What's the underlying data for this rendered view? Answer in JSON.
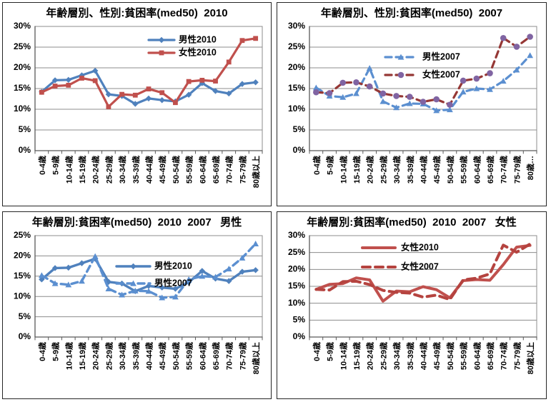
{
  "page": {
    "background": "#ffffff",
    "description_colors": {
      "male_2010_blue": "#4F81BD",
      "female_2010_red": "#C0504D",
      "male_2007_light_blue": "#5B8FD0",
      "female_2007_dark_red": "#953735",
      "female_2007_marker_purple": "#8064A2",
      "gridline_gray": "#8C8C8C",
      "axis_gray": "#595959"
    }
  },
  "chart_data": [
    {
      "type": "line",
      "title": "年齢層別、性別:貧困率(med50)  2010",
      "xlabel": "",
      "ylabel": "",
      "ylim": [
        0,
        30
      ],
      "ytick_step": 5,
      "ytick_labels": [
        "0%",
        "5%",
        "10%",
        "15%",
        "20%",
        "25%",
        "30%"
      ],
      "grid": true,
      "legend_position": "inside-upper-right",
      "categories": [
        "0-4歳",
        "5-9歳",
        "10-14歳",
        "15-19歳",
        "20-24歳",
        "25-29歳",
        "30-34歳",
        "35-39歳",
        "40-44歳",
        "45-49歳",
        "50-54歳",
        "55-59歳",
        "60-64歳",
        "65-69歳",
        "70-74歳",
        "75-79歳",
        "80歳以上"
      ],
      "series": [
        {
          "name": "男性2010",
          "color": "#4F81BD",
          "style": "solid",
          "marker": "diamond",
          "values": [
            14.2,
            17.0,
            17.1,
            18.2,
            19.3,
            13.6,
            13.2,
            11.3,
            12.6,
            12.2,
            11.9,
            13.5,
            16.3,
            14.4,
            13.8,
            16.1,
            16.5
          ]
        },
        {
          "name": "女性2010",
          "color": "#C0504D",
          "style": "solid",
          "marker": "square",
          "values": [
            14.1,
            15.6,
            15.8,
            17.5,
            16.9,
            10.6,
            13.6,
            13.4,
            14.9,
            14.0,
            11.6,
            16.7,
            17.0,
            16.8,
            21.4,
            26.6,
            27.1
          ]
        }
      ]
    },
    {
      "type": "line",
      "title": "年齢層別、性別:貧困率(med50)  2007",
      "xlabel": "",
      "ylabel": "",
      "ylim": [
        0,
        30
      ],
      "ytick_step": 5,
      "ytick_labels": [
        "0%",
        "5%",
        "10%",
        "15%",
        "20%",
        "25%",
        "30%"
      ],
      "grid": true,
      "legend_position": "inside-middle-center",
      "categories": [
        "0-4歳",
        "5-9歳",
        "10-14歳",
        "15-19歳",
        "20-24歳",
        "25-29歳",
        "30-34歳",
        "35-39歳",
        "40-44歳",
        "45-49歳",
        "50-54歳",
        "55-59歳",
        "60-64歳",
        "65-69歳",
        "70-74歳",
        "75-79歳",
        "80歳…"
      ],
      "series": [
        {
          "name": "男性2007",
          "color": "#5B8FD0",
          "style": "dashed",
          "marker": "triangle",
          "values": [
            15.2,
            13.2,
            12.9,
            13.8,
            19.9,
            11.9,
            10.4,
            11.4,
            11.3,
            9.7,
            9.9,
            14.2,
            15.0,
            14.8,
            16.8,
            19.5,
            23.0
          ]
        },
        {
          "name": "女性2007",
          "color": "#953735",
          "style": "dashed",
          "marker": "circle",
          "marker_color": "#8064A2",
          "values": [
            14.1,
            13.9,
            16.4,
            16.5,
            15.5,
            13.8,
            13.2,
            13.0,
            11.8,
            12.4,
            11.1,
            16.9,
            17.4,
            18.7,
            27.2,
            25.1,
            27.5
          ]
        }
      ]
    },
    {
      "type": "line",
      "title": "年齢層別:貧困率(med50)  2010  2007   男性",
      "xlabel": "",
      "ylabel": "",
      "ylim": [
        0,
        25
      ],
      "ytick_step": 5,
      "ytick_labels": [
        "0%",
        "5%",
        "10%",
        "15%",
        "20%",
        "25%"
      ],
      "grid": true,
      "legend_position": "inside-middle-center",
      "categories": [
        "0-4歳",
        "5-9歳",
        "10-14歳",
        "15-19歳",
        "20-24歳",
        "25-29歳",
        "30-34歳",
        "35-39歳",
        "40-44歳",
        "45-49歳",
        "50-54歳",
        "55-59歳",
        "60-64歳",
        "65-69歳",
        "70-74歳",
        "75-79歳",
        "80歳以上"
      ],
      "series": [
        {
          "name": "男性2010",
          "color": "#4F81BD",
          "style": "solid",
          "marker": "diamond",
          "values": [
            14.2,
            17.0,
            17.1,
            18.2,
            19.3,
            13.6,
            13.2,
            11.3,
            12.6,
            12.2,
            11.9,
            13.5,
            16.3,
            14.4,
            13.8,
            16.1,
            16.5
          ]
        },
        {
          "name": "男性2007",
          "color": "#5B8FD0",
          "style": "dashed",
          "marker": "triangle",
          "values": [
            15.2,
            13.2,
            12.9,
            13.8,
            19.9,
            11.9,
            10.4,
            11.4,
            11.3,
            9.7,
            9.9,
            14.2,
            15.0,
            14.8,
            16.8,
            19.5,
            23.0
          ]
        }
      ]
    },
    {
      "type": "line",
      "title": "年齢層別:貧困率(med50)  2010  2007   女性",
      "xlabel": "",
      "ylabel": "",
      "ylim": [
        0,
        30
      ],
      "ytick_step": 5,
      "ytick_labels": [
        "0%",
        "5%",
        "10%",
        "15%",
        "20%",
        "25%",
        "30%"
      ],
      "grid": true,
      "legend_position": "inside-upper-left",
      "categories": [
        "0-4歳",
        "5-9歳",
        "10-14歳",
        "15-19歳",
        "20-24歳",
        "25-29歳",
        "30-34歳",
        "35-39歳",
        "40-44歳",
        "45-49歳",
        "50-54歳",
        "55-59歳",
        "60-64歳",
        "65-69歳",
        "70-74歳",
        "75-79歳",
        "80歳以上"
      ],
      "series": [
        {
          "name": "女性2010",
          "color": "#C0504D",
          "style": "solid",
          "marker": "none",
          "values": [
            14.1,
            15.6,
            15.8,
            17.5,
            16.9,
            10.6,
            13.6,
            13.4,
            14.9,
            14.0,
            11.6,
            16.7,
            17.0,
            16.8,
            21.4,
            26.6,
            27.1
          ]
        },
        {
          "name": "女性2007",
          "color": "#B5433F",
          "style": "dashed",
          "marker": "none",
          "values": [
            14.1,
            13.9,
            16.4,
            16.5,
            15.5,
            13.8,
            13.2,
            13.0,
            11.8,
            12.4,
            11.1,
            16.9,
            17.4,
            18.7,
            27.2,
            25.1,
            27.5
          ]
        }
      ]
    }
  ]
}
